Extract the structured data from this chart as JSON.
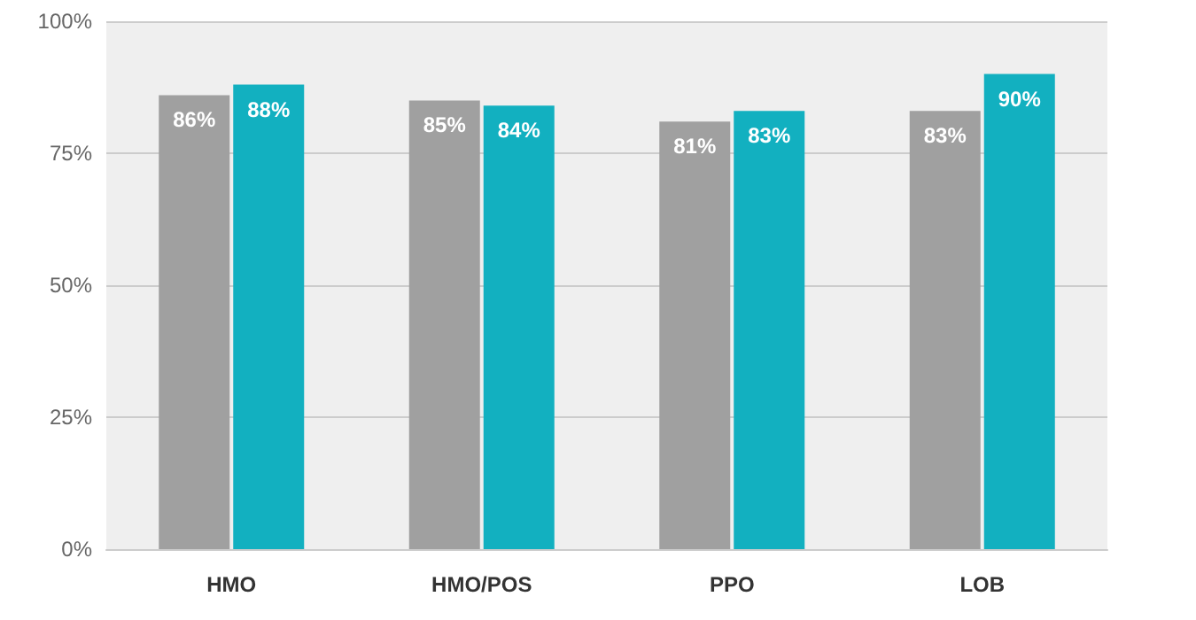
{
  "chart_data": {
    "type": "bar",
    "categories": [
      "HMO",
      "HMO/POS",
      "PPO",
      "LOB"
    ],
    "series": [
      {
        "color": "#a0a0a0",
        "values": [
          86,
          85,
          81,
          83
        ],
        "value_labels": [
          "86%",
          "85%",
          "81%",
          "83%"
        ]
      },
      {
        "color": "#12b0c0",
        "values": [
          88,
          84,
          83,
          90
        ],
        "value_labels": [
          "88%",
          "84%",
          "83%",
          "90%"
        ]
      }
    ],
    "ylim": [
      0,
      100
    ],
    "yticks": [
      {
        "value": 0,
        "label": "0%"
      },
      {
        "value": 25,
        "label": "25%"
      },
      {
        "value": 50,
        "label": "50%"
      },
      {
        "value": 75,
        "label": "75%"
      },
      {
        "value": 100,
        "label": "100%"
      }
    ],
    "grid": "y"
  }
}
